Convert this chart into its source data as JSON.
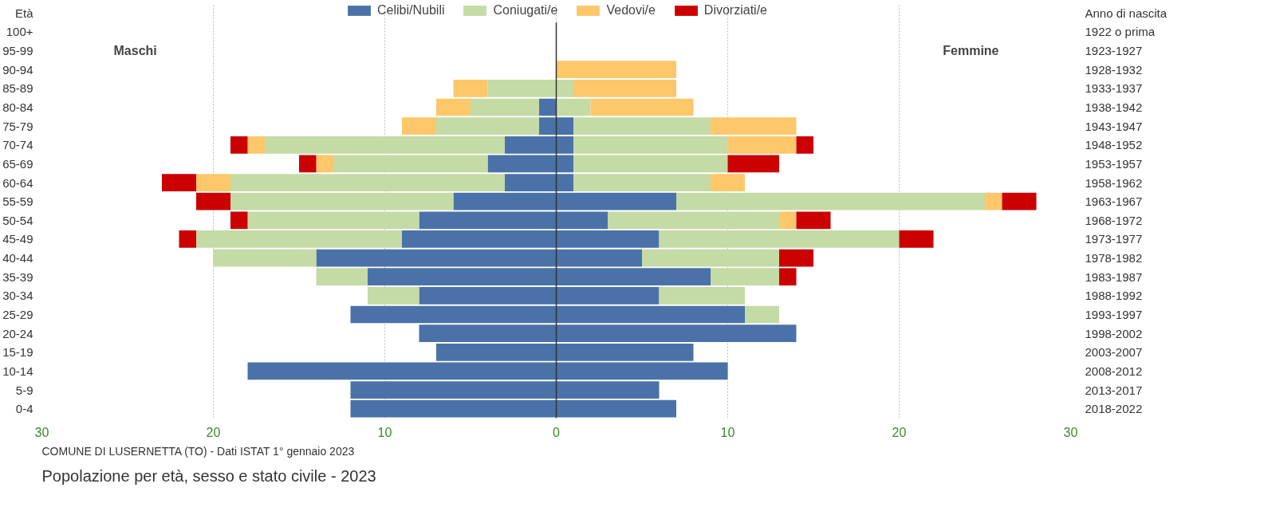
{
  "chart_data": {
    "type": "bar",
    "orientation": "horizontal",
    "stacked": true,
    "title": "Popolazione per età, sesso e stato civile - 2023",
    "ylabel": "Età",
    "y2label": "Anno di nascita",
    "categories": [
      "100+",
      "95-99",
      "90-94",
      "85-89",
      "80-84",
      "75-79",
      "70-74",
      "65-69",
      "60-64",
      "55-59",
      "50-54",
      "45-49",
      "40-44",
      "35-39",
      "30-34",
      "25-29",
      "20-24",
      "15-19",
      "10-14",
      "5-9",
      "0-4"
    ],
    "y2_categories": [
      "1922 o prima",
      "1923-1927",
      "1928-1932",
      "1933-1937",
      "1938-1942",
      "1943-1947",
      "1948-1952",
      "1953-1957",
      "1958-1962",
      "1963-1967",
      "1968-1972",
      "1973-1977",
      "1978-1982",
      "1983-1987",
      "1988-1992",
      "1993-1997",
      "1998-2002",
      "2003-2007",
      "2008-2012",
      "2013-2017",
      "2018-2022"
    ],
    "series": [
      {
        "name": "Celibi/Nubili",
        "color": "#4a72a8",
        "values": [
          0,
          0,
          0,
          0,
          -1,
          -1,
          -3,
          -4,
          -3,
          -6,
          -8,
          -9,
          -14,
          -11,
          -8,
          -12,
          -8,
          -7,
          -18,
          -12,
          -12
        ]
      },
      {
        "name": "Coniugati/e",
        "color": "#c4dba5",
        "values": [
          0,
          0,
          0,
          -4,
          -4,
          -6,
          -14,
          -9,
          -16,
          -13,
          -10,
          -12,
          -6,
          -3,
          -3,
          0,
          0,
          0,
          0,
          0,
          0
        ]
      },
      {
        "name": "Vedovi/e",
        "color": "#fdc76a",
        "values": [
          0,
          0,
          0,
          -2,
          -2,
          -2,
          -1,
          -1,
          -2,
          0,
          0,
          0,
          0,
          0,
          0,
          0,
          0,
          0,
          0,
          0,
          0
        ]
      },
      {
        "name": "Divorziati/e",
        "color": "#cc0000",
        "values": [
          0,
          0,
          0,
          0,
          0,
          0,
          -1,
          -1,
          -2,
          -2,
          -1,
          -1,
          0,
          0,
          0,
          0,
          0,
          0,
          0,
          0,
          0
        ]
      },
      {
        "color": "#4a72a8",
        "values": [
          0,
          0,
          0,
          0,
          0,
          1,
          1,
          1,
          1,
          7,
          3,
          6,
          5,
          9,
          6,
          11,
          14,
          8,
          10,
          6,
          7
        ]
      },
      {
        "color": "#c4dba5",
        "values": [
          0,
          0,
          0,
          1,
          2,
          8,
          9,
          9,
          8,
          18,
          10,
          14,
          8,
          4,
          5,
          2,
          0,
          0,
          0,
          0,
          0
        ]
      },
      {
        "color": "#fdc76a",
        "values": [
          0,
          0,
          7,
          6,
          6,
          5,
          4,
          0,
          2,
          1,
          1,
          0,
          0,
          0,
          0,
          0,
          0,
          0,
          0,
          0,
          0
        ]
      },
      {
        "color": "#cc0000",
        "values": [
          0,
          0,
          0,
          0,
          0,
          0,
          1,
          3,
          0,
          2,
          2,
          2,
          2,
          1,
          0,
          0,
          0,
          0,
          0,
          0,
          0
        ]
      }
    ],
    "xlim": [
      -30,
      30
    ],
    "xticks": [
      {
        "value": -30,
        "label": "30"
      },
      {
        "value": -20,
        "label": "20"
      },
      {
        "value": -10,
        "label": "10"
      },
      0,
      10,
      20,
      30
    ],
    "ref_lines": [
      {
        "axis": "x",
        "value": 0,
        "color": "#333333"
      }
    ],
    "grid": "x",
    "legend": "top",
    "annotations": [
      "Maschi",
      "Femmine",
      "COMUNE DI LUSERNETTA (TO) - Dati ISTAT 1° gennaio 2023"
    ]
  }
}
